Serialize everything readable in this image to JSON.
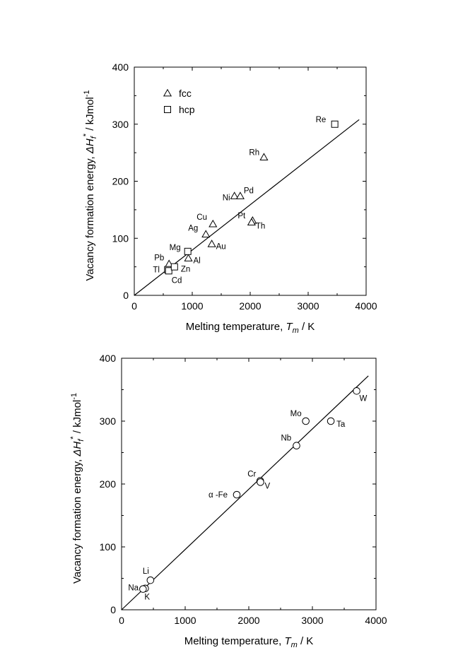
{
  "chart_data": [
    {
      "type": "scatter",
      "xlabel": "Melting temperature, T_m / K",
      "ylabel": "Vacancy formation energy, ΔH_f* / kJmol^-1",
      "xlabel_parts": {
        "prefix": "Melting temperature, ",
        "sym": "T",
        "sub": "m",
        "suffix": " / K"
      },
      "ylabel_parts": {
        "prefix": "Vacancy formation energy, ",
        "sym": "ΔH",
        "sub": "f",
        "sup": "*",
        "suffix": " / kJmol",
        "unit_sup": "-1"
      },
      "xlim": [
        0,
        4000
      ],
      "ylim": [
        0,
        400
      ],
      "xticks": [
        "0",
        "1000",
        "2000",
        "3000",
        "4000"
      ],
      "yticks": [
        "0",
        "100",
        "200",
        "300",
        "400"
      ],
      "grid": false,
      "legend_position": "top-left",
      "legend": [
        {
          "label": "fcc",
          "marker": "triangle"
        },
        {
          "label": "hcp",
          "marker": "square"
        }
      ],
      "fit_line": {
        "x": [
          0,
          3880
        ],
        "y": [
          0,
          308
        ]
      },
      "series": [
        {
          "name": "fcc",
          "marker": "triangle",
          "points": [
            {
              "label": "Pb",
              "x": 600,
              "y": 55
            },
            {
              "label": "Al",
              "x": 933,
              "y": 65
            },
            {
              "label": "Ag",
              "x": 1235,
              "y": 107
            },
            {
              "label": "Au",
              "x": 1337,
              "y": 90
            },
            {
              "label": "Cu",
              "x": 1357,
              "y": 125
            },
            {
              "label": "Ni",
              "x": 1728,
              "y": 174
            },
            {
              "label": "Pd",
              "x": 1828,
              "y": 174
            },
            {
              "label": "Pt",
              "x": 2041,
              "y": 131
            },
            {
              "label": "Th",
              "x": 2023,
              "y": 128
            },
            {
              "label": "Rh",
              "x": 2237,
              "y": 242
            }
          ]
        },
        {
          "name": "hcp",
          "marker": "square",
          "points": [
            {
              "label": "Tl",
              "x": 577,
              "y": 45
            },
            {
              "label": "Cd",
              "x": 594,
              "y": 43
            },
            {
              "label": "Zn",
              "x": 693,
              "y": 50
            },
            {
              "label": "Mg",
              "x": 923,
              "y": 77
            },
            {
              "label": "Re",
              "x": 3459,
              "y": 300
            }
          ]
        }
      ]
    },
    {
      "type": "scatter",
      "xlabel": "Melting temperature, T_m / K",
      "ylabel": "Vacancy formation energy, ΔH_f* / kJmol^-1",
      "xlabel_parts": {
        "prefix": "Melting temperature, ",
        "sym": "T",
        "sub": "m",
        "suffix": " / K"
      },
      "ylabel_parts": {
        "prefix": "Vacancy formation energy, ",
        "sym": "ΔH",
        "sub": "f",
        "sup": "*",
        "suffix": " / kJmol",
        "unit_sup": "-1"
      },
      "xlim": [
        0,
        4000
      ],
      "ylim": [
        0,
        400
      ],
      "xticks": [
        "0",
        "1000",
        "2000",
        "3000",
        "4000"
      ],
      "yticks": [
        "0",
        "100",
        "200",
        "300",
        "400"
      ],
      "grid": false,
      "fit_line": {
        "x": [
          0,
          3880
        ],
        "y": [
          0,
          372
        ]
      },
      "series": [
        {
          "marker": "circle",
          "points": [
            {
              "label": "Na",
              "x": 371,
              "y": 34
            },
            {
              "label": "K",
              "x": 337,
              "y": 33
            },
            {
              "label": "Li",
              "x": 454,
              "y": 47
            },
            {
              "label": "α -Fe",
              "x": 1811,
              "y": 183
            },
            {
              "label": "Cr",
              "x": 2180,
              "y": 205
            },
            {
              "label": "V",
              "x": 2183,
              "y": 203
            },
            {
              "label": "Nb",
              "x": 2750,
              "y": 261
            },
            {
              "label": "Mo",
              "x": 2896,
              "y": 300
            },
            {
              "label": "Ta",
              "x": 3290,
              "y": 300
            },
            {
              "label": "W",
              "x": 3695,
              "y": 348
            }
          ]
        }
      ]
    }
  ]
}
